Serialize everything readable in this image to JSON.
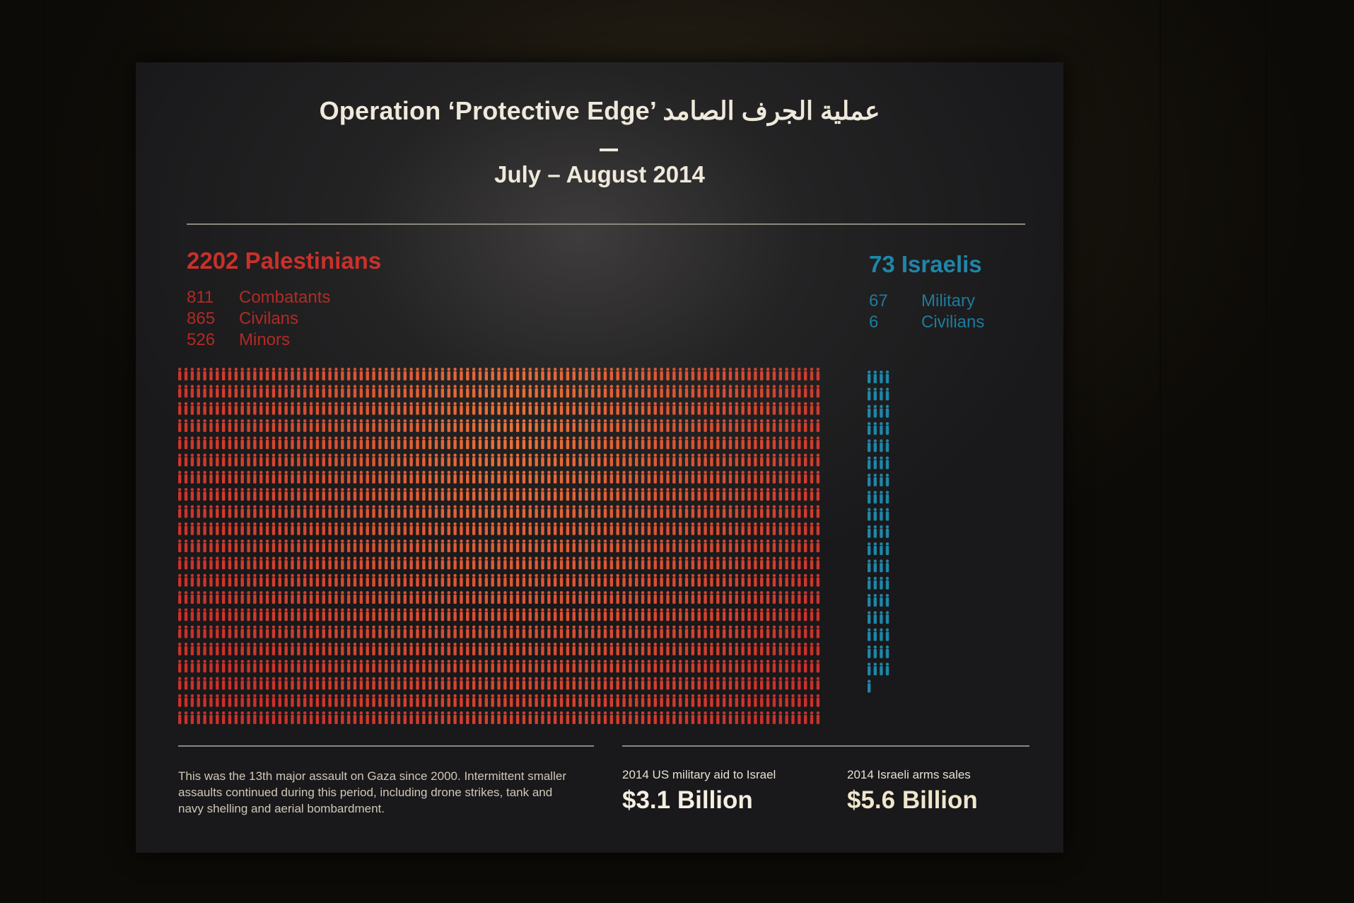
{
  "title": "Operation ‘Protective Edge’ عملية الجرف الصامد",
  "subtitle": "July – August 2014",
  "palestinians": {
    "heading": "2202 Palestinians",
    "breakdown": [
      {
        "count": "811",
        "label": "Combatants"
      },
      {
        "count": "865",
        "label": "Civilans"
      },
      {
        "count": "526",
        "label": "Minors"
      }
    ]
  },
  "israelis": {
    "heading": "73 Israelis",
    "breakdown": [
      {
        "count": "67",
        "label": "Military"
      },
      {
        "count": "6",
        "label": "Civilians"
      }
    ]
  },
  "footer": {
    "note": "This was the 13th major assault on Gaza since 2000. Intermittent smaller assaults continued during this period, including drone strikes, tank and navy shelling and aerial bombardment.",
    "aid_label": "2014 US military aid to Israel",
    "aid_value": "$3.1 Billion",
    "arms_label": "2014 Israeli arms sales",
    "arms_value": "$5.6 Billion"
  },
  "colors": {
    "palestinian": "#c9312a",
    "palestinian_highlight": "#e8733a",
    "israeli": "#1f86a8",
    "text": "#efe9dc"
  },
  "chart_data": {
    "type": "pictograph",
    "unit": "one person icon = one death",
    "series": [
      {
        "name": "Palestinians",
        "values": [
          {
            "label": "Combatants",
            "value": 811
          },
          {
            "label": "Civilans",
            "value": 865
          },
          {
            "label": "Minors",
            "value": 526
          }
        ],
        "total": 2202
      },
      {
        "name": "Israelis",
        "values": [
          {
            "label": "Military",
            "value": 67
          },
          {
            "label": "Civilians",
            "value": 6
          }
        ],
        "total": 73
      }
    ]
  }
}
